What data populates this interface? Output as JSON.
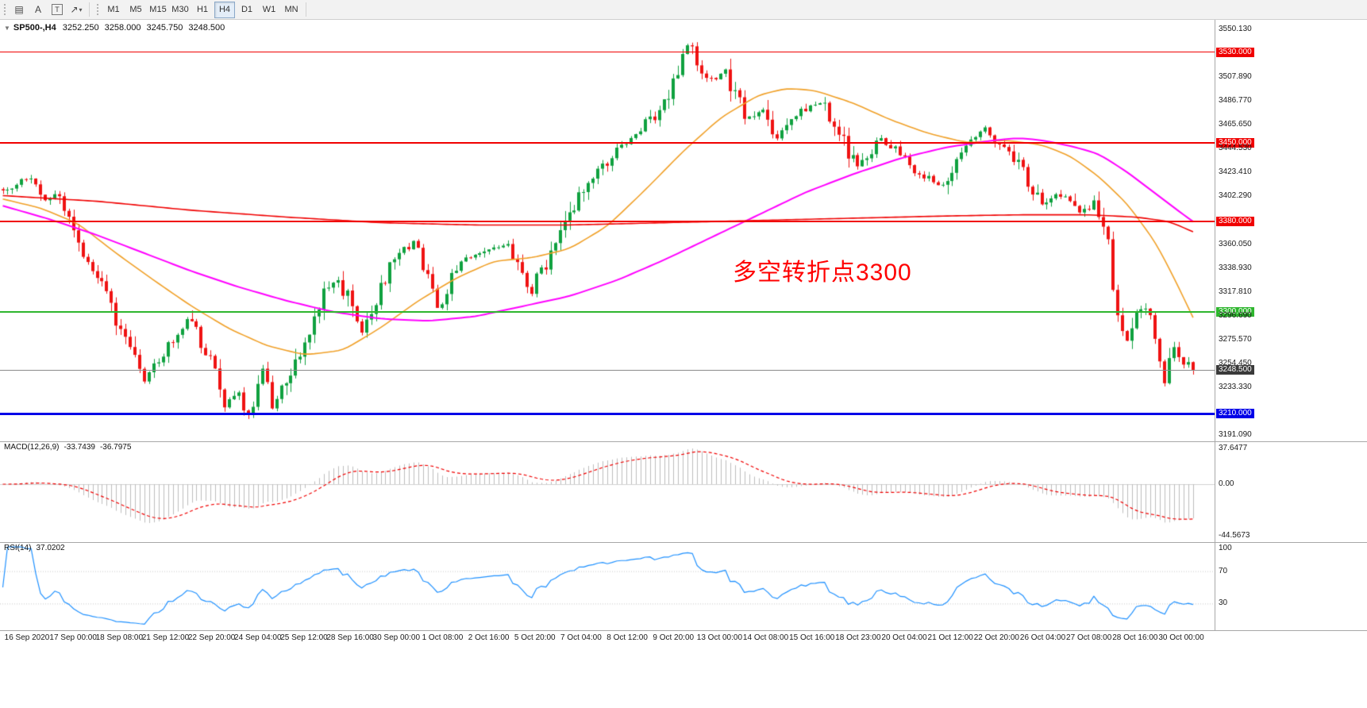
{
  "toolbar": {
    "tools": [
      {
        "name": "chart-grid-tool",
        "glyph": "▤",
        "boxed": false,
        "dropdown": false
      },
      {
        "name": "text-tool",
        "glyph": "A",
        "boxed": false,
        "dropdown": false
      },
      {
        "name": "text-label-tool",
        "glyph": "T",
        "boxed": true,
        "dropdown": false
      },
      {
        "name": "arrows-tool",
        "glyph": "↗",
        "boxed": false,
        "dropdown": true
      }
    ],
    "timeframes": [
      "M1",
      "M5",
      "M15",
      "M30",
      "H1",
      "H4",
      "D1",
      "W1",
      "MN"
    ],
    "active_timeframe": "H4"
  },
  "header": {
    "collapse_glyph": "▼",
    "symbol_period": "SP500-,H4",
    "open": "3252.250",
    "high": "3258.000",
    "low": "3245.750",
    "close": "3248.500"
  },
  "annotation": {
    "text": "多空转折点3300",
    "color": "#ff0000"
  },
  "indicators": {
    "macd": {
      "label": "MACD(12,26,9)",
      "value_main": "-33.7439",
      "value_signal": "-36.7975",
      "axis": {
        "top": "37.6477",
        "zero": "0.00",
        "bottom": "-44.5673"
      }
    },
    "rsi": {
      "label": "RSI(14)",
      "value": "37.0202",
      "axis": [
        "100",
        "70",
        "30"
      ],
      "levels": [
        70,
        30
      ]
    }
  },
  "price_axis": {
    "range": {
      "max": 3559.3,
      "min": 3185.5
    },
    "labels": [
      {
        "text": "3550.130",
        "price": 3550.13,
        "type": "normal"
      },
      {
        "text": "3530.000",
        "price": 3530.0,
        "type": "red"
      },
      {
        "text": "3507.890",
        "price": 3507.89,
        "type": "normal"
      },
      {
        "text": "3486.770",
        "price": 3486.77,
        "type": "normal"
      },
      {
        "text": "3465.650",
        "price": 3465.65,
        "type": "normal"
      },
      {
        "text": "3450.000",
        "price": 3450.0,
        "type": "red"
      },
      {
        "text": "3444.530",
        "price": 3444.53,
        "type": "normal"
      },
      {
        "text": "3423.410",
        "price": 3423.41,
        "type": "normal"
      },
      {
        "text": "3402.290",
        "price": 3402.29,
        "type": "normal"
      },
      {
        "text": "3380.000",
        "price": 3380.0,
        "type": "red"
      },
      {
        "text": "3360.050",
        "price": 3360.05,
        "type": "normal"
      },
      {
        "text": "3338.930",
        "price": 3338.93,
        "type": "normal"
      },
      {
        "text": "3317.810",
        "price": 3317.81,
        "type": "normal"
      },
      {
        "text": "3300.000",
        "price": 3300.0,
        "type": "green"
      },
      {
        "text": "3296.690",
        "price": 3296.69,
        "type": "normal"
      },
      {
        "text": "3275.570",
        "price": 3275.57,
        "type": "normal"
      },
      {
        "text": "3254.450",
        "price": 3254.45,
        "type": "normal"
      },
      {
        "text": "3248.500",
        "price": 3248.5,
        "type": "current"
      },
      {
        "text": "3233.330",
        "price": 3233.33,
        "type": "normal"
      },
      {
        "text": "3210.000",
        "price": 3210.0,
        "type": "blue"
      },
      {
        "text": "3191.090",
        "price": 3191.09,
        "type": "normal"
      }
    ]
  },
  "levels": [
    {
      "label": "3530.000",
      "price": 3530.0,
      "color": "#f00000",
      "thickness": 1
    },
    {
      "label": "3450.000",
      "price": 3450.0,
      "color": "#f00000",
      "thickness": 2
    },
    {
      "label": "3380.000",
      "price": 3380.0,
      "color": "#f00000",
      "thickness": 2
    },
    {
      "label": "3300.000",
      "price": 3300.0,
      "color": "#2eb62e",
      "thickness": 2
    },
    {
      "label": "3210.000",
      "price": 3210.0,
      "color": "#0000e8",
      "thickness": 3
    }
  ],
  "current_price": {
    "label": "3248.500",
    "price": 3248.5
  },
  "date_axis": [
    "16 Sep 2020",
    "17 Sep 00:00",
    "18 Sep 08:00",
    "21 Sep 12:00",
    "22 Sep 20:00",
    "24 Sep 04:00",
    "25 Sep 12:00",
    "28 Sep 16:00",
    "30 Sep 00:00",
    "1 Oct 08:00",
    "2 Oct 16:00",
    "5 Oct 20:00",
    "7 Oct 04:00",
    "8 Oct 12:00",
    "9 Oct 20:00",
    "13 Oct 00:00",
    "14 Oct 08:00",
    "15 Oct 16:00",
    "18 Oct 23:00",
    "20 Oct 04:00",
    "21 Oct 12:00",
    "22 Oct 20:00",
    "26 Oct 04:00",
    "27 Oct 08:00",
    "28 Oct 16:00",
    "30 Oct 00:00"
  ],
  "chart_data": {
    "type": "candlestick",
    "symbol": "SP500-",
    "period": "H4",
    "bars": 253,
    "noise_seed": 13,
    "candle_colors": {
      "up": "#0fa13f",
      "down": "#ef1212"
    },
    "price_path_anchors": [
      [
        0,
        3408
      ],
      [
        5,
        3418
      ],
      [
        9,
        3400
      ],
      [
        12,
        3408
      ],
      [
        15,
        3368
      ],
      [
        20,
        3332
      ],
      [
        23,
        3302
      ],
      [
        26,
        3280
      ],
      [
        30,
        3240
      ],
      [
        33,
        3256
      ],
      [
        37,
        3284
      ],
      [
        39,
        3296
      ],
      [
        41,
        3281
      ],
      [
        44,
        3256
      ],
      [
        47,
        3216
      ],
      [
        50,
        3226
      ],
      [
        52,
        3206
      ],
      [
        54,
        3236
      ],
      [
        55,
        3250
      ],
      [
        57,
        3213
      ],
      [
        60,
        3236
      ],
      [
        63,
        3265
      ],
      [
        66,
        3295
      ],
      [
        69,
        3325
      ],
      [
        71,
        3332
      ],
      [
        73,
        3311
      ],
      [
        76,
        3283
      ],
      [
        79,
        3310
      ],
      [
        82,
        3340
      ],
      [
        84,
        3352
      ],
      [
        87,
        3360
      ],
      [
        89,
        3345
      ],
      [
        92,
        3306
      ],
      [
        94,
        3320
      ],
      [
        97,
        3345
      ],
      [
        100,
        3352
      ],
      [
        103,
        3358
      ],
      [
        107,
        3360
      ],
      [
        110,
        3331
      ],
      [
        112,
        3318
      ],
      [
        114,
        3335
      ],
      [
        117,
        3358
      ],
      [
        120,
        3385
      ],
      [
        124,
        3415
      ],
      [
        127,
        3430
      ],
      [
        130,
        3442
      ],
      [
        134,
        3460
      ],
      [
        137,
        3470
      ],
      [
        140,
        3486
      ],
      [
        143,
        3516
      ],
      [
        145,
        3536
      ],
      [
        147,
        3521
      ],
      [
        150,
        3506
      ],
      [
        153,
        3512
      ],
      [
        155,
        3491
      ],
      [
        158,
        3470
      ],
      [
        161,
        3478
      ],
      [
        164,
        3452
      ],
      [
        167,
        3470
      ],
      [
        170,
        3480
      ],
      [
        173,
        3488
      ],
      [
        176,
        3466
      ],
      [
        178,
        3450
      ],
      [
        181,
        3426
      ],
      [
        184,
        3440
      ],
      [
        186,
        3452
      ],
      [
        189,
        3445
      ],
      [
        192,
        3430
      ],
      [
        195,
        3420
      ],
      [
        199,
        3412
      ],
      [
        202,
        3438
      ],
      [
        205,
        3450
      ],
      [
        208,
        3462
      ],
      [
        211,
        3450
      ],
      [
        214,
        3435
      ],
      [
        217,
        3415
      ],
      [
        220,
        3396
      ],
      [
        223,
        3406
      ],
      [
        226,
        3400
      ],
      [
        228,
        3388
      ],
      [
        231,
        3396
      ],
      [
        234,
        3362
      ],
      [
        236,
        3292
      ],
      [
        238,
        3272
      ],
      [
        240,
        3295
      ],
      [
        242,
        3306
      ],
      [
        245,
        3256
      ],
      [
        246,
        3238
      ],
      [
        248,
        3270
      ],
      [
        250,
        3256
      ],
      [
        252,
        3248.5
      ]
    ],
    "moving_averages": [
      {
        "name": "ma-fast",
        "color": "#f0a028",
        "width": 1.6,
        "anchors": [
          [
            0,
            3400
          ],
          [
            8,
            3392
          ],
          [
            16,
            3378
          ],
          [
            24,
            3352
          ],
          [
            32,
            3328
          ],
          [
            40,
            3305
          ],
          [
            48,
            3285
          ],
          [
            56,
            3270
          ],
          [
            64,
            3262
          ],
          [
            72,
            3266
          ],
          [
            80,
            3286
          ],
          [
            88,
            3310
          ],
          [
            96,
            3330
          ],
          [
            104,
            3345
          ],
          [
            112,
            3348
          ],
          [
            120,
            3356
          ],
          [
            128,
            3376
          ],
          [
            136,
            3408
          ],
          [
            144,
            3442
          ],
          [
            152,
            3472
          ],
          [
            160,
            3492
          ],
          [
            166,
            3498
          ],
          [
            172,
            3496
          ],
          [
            180,
            3485
          ],
          [
            188,
            3470
          ],
          [
            196,
            3458
          ],
          [
            204,
            3450
          ],
          [
            212,
            3452
          ],
          [
            220,
            3448
          ],
          [
            226,
            3438
          ],
          [
            232,
            3420
          ],
          [
            238,
            3396
          ],
          [
            244,
            3362
          ],
          [
            248,
            3330
          ],
          [
            252,
            3295
          ]
        ]
      },
      {
        "name": "ma-medium",
        "color": "#ff00ff",
        "width": 2,
        "anchors": [
          [
            0,
            3394
          ],
          [
            10,
            3382
          ],
          [
            20,
            3368
          ],
          [
            30,
            3352
          ],
          [
            40,
            3336
          ],
          [
            50,
            3322
          ],
          [
            60,
            3310
          ],
          [
            70,
            3300
          ],
          [
            80,
            3294
          ],
          [
            90,
            3292
          ],
          [
            100,
            3296
          ],
          [
            110,
            3305
          ],
          [
            120,
            3314
          ],
          [
            130,
            3328
          ],
          [
            140,
            3346
          ],
          [
            150,
            3366
          ],
          [
            160,
            3386
          ],
          [
            170,
            3406
          ],
          [
            180,
            3422
          ],
          [
            190,
            3436
          ],
          [
            200,
            3446
          ],
          [
            210,
            3452
          ],
          [
            215,
            3454
          ],
          [
            220,
            3452
          ],
          [
            226,
            3447
          ],
          [
            232,
            3440
          ],
          [
            238,
            3424
          ],
          [
            244,
            3405
          ],
          [
            250,
            3386
          ],
          [
            252,
            3380
          ]
        ]
      },
      {
        "name": "ma-slow",
        "color": "#f00000",
        "width": 1.6,
        "anchors": [
          [
            0,
            3403
          ],
          [
            20,
            3398
          ],
          [
            40,
            3390
          ],
          [
            60,
            3384
          ],
          [
            80,
            3379
          ],
          [
            100,
            3377
          ],
          [
            120,
            3377
          ],
          [
            140,
            3379
          ],
          [
            160,
            3381
          ],
          [
            180,
            3383
          ],
          [
            200,
            3385
          ],
          [
            215,
            3386
          ],
          [
            230,
            3386
          ],
          [
            240,
            3384
          ],
          [
            247,
            3380
          ],
          [
            252,
            3371
          ]
        ]
      }
    ],
    "macd": {
      "fast": 12,
      "slow": 26,
      "signal": 9,
      "histogram_color": "#bdbdbd",
      "signal_color": "#f00000"
    },
    "rsi": {
      "period": 14,
      "color": "#1e90ff"
    }
  }
}
